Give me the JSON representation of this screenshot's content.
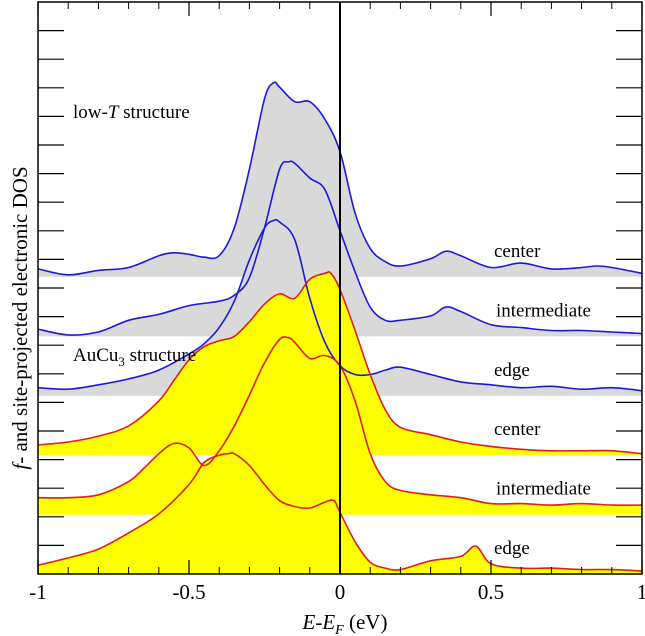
{
  "chart_data": {
    "type": "area",
    "xlabel": {
      "main": "E-E",
      "sub": "F",
      "unit": " (eV)"
    },
    "ylabel": {
      "prefix": "f",
      "rest": "- and site-projected electronic DOS"
    },
    "xlim": [
      -1,
      1
    ],
    "x_ticks": [
      -1,
      -0.5,
      0,
      0.5,
      1
    ],
    "x_tick_labels": [
      "-1",
      "-0.5",
      "0",
      "0.5",
      "1"
    ],
    "y_ticks_count": 20,
    "y_grid": false,
    "fermi_line_x": 0,
    "groups": [
      {
        "name_parts": [
          "low-",
          "T",
          " structure"
        ],
        "fill_color": "#d9d9d9",
        "line_color": "#1a1adb",
        "series": [
          {
            "name": "center",
            "baseline": 9.63,
            "x": [
              -1.0,
              -0.9,
              -0.8,
              -0.7,
              -0.6,
              -0.55,
              -0.5,
              -0.45,
              -0.4,
              -0.35,
              -0.3,
              -0.25,
              -0.22,
              -0.2,
              -0.15,
              -0.1,
              -0.05,
              0.0,
              0.05,
              0.1,
              0.15,
              0.2,
              0.3,
              0.35,
              0.4,
              0.5,
              0.6,
              0.7,
              0.8,
              0.85,
              0.9,
              1.0
            ],
            "y": [
              9.9,
              9.7,
              9.85,
              9.95,
              10.35,
              10.45,
              10.4,
              10.3,
              10.35,
              11.3,
              13.3,
              15.7,
              16.25,
              16.1,
              15.6,
              15.6,
              15.0,
              13.9,
              11.8,
              10.6,
              10.15,
              10.0,
              10.25,
              10.5,
              10.35,
              9.95,
              10.1,
              9.9,
              9.95,
              10.0,
              9.95,
              9.75
            ]
          },
          {
            "name": "intermediate",
            "baseline": 7.6,
            "x": [
              -1.0,
              -0.9,
              -0.8,
              -0.7,
              -0.6,
              -0.5,
              -0.4,
              -0.35,
              -0.3,
              -0.25,
              -0.2,
              -0.17,
              -0.15,
              -0.1,
              -0.05,
              0.0,
              0.05,
              0.1,
              0.15,
              0.2,
              0.3,
              0.35,
              0.4,
              0.5,
              0.6,
              0.7,
              0.8,
              0.9,
              1.0
            ],
            "y": [
              7.85,
              7.65,
              7.75,
              8.15,
              8.35,
              8.65,
              8.8,
              9.0,
              9.6,
              11.3,
              13.3,
              13.55,
              13.5,
              13.0,
              12.6,
              11.2,
              9.8,
              8.6,
              8.15,
              8.15,
              8.3,
              8.6,
              8.45,
              8.0,
              7.9,
              7.8,
              7.8,
              7.75,
              7.7
            ]
          },
          {
            "name": "edge",
            "baseline": 5.57,
            "x": [
              -1.0,
              -0.9,
              -0.8,
              -0.7,
              -0.6,
              -0.5,
              -0.45,
              -0.4,
              -0.35,
              -0.3,
              -0.25,
              -0.22,
              -0.2,
              -0.15,
              -0.1,
              -0.05,
              0.0,
              0.05,
              0.1,
              0.15,
              0.2,
              0.3,
              0.4,
              0.5,
              0.6,
              0.7,
              0.8,
              0.9,
              1.0
            ],
            "y": [
              5.85,
              5.8,
              5.95,
              6.15,
              6.45,
              7.0,
              7.35,
              7.9,
              8.8,
              10.2,
              11.3,
              11.55,
              11.5,
              10.9,
              8.9,
              7.4,
              6.6,
              6.3,
              6.3,
              6.45,
              6.55,
              6.3,
              6.05,
              5.95,
              5.85,
              5.9,
              5.8,
              5.85,
              5.75
            ]
          }
        ]
      },
      {
        "name_parts": [
          "AuCu",
          "3",
          " structure"
        ],
        "fill_color": "#ffff00",
        "line_color": "#e01e1e",
        "series": [
          {
            "name": "center",
            "baseline": 3.55,
            "x": [
              -1.0,
              -0.9,
              -0.8,
              -0.7,
              -0.6,
              -0.55,
              -0.5,
              -0.45,
              -0.4,
              -0.35,
              -0.3,
              -0.25,
              -0.2,
              -0.15,
              -0.1,
              -0.05,
              -0.03,
              0.0,
              0.05,
              0.1,
              0.15,
              0.2,
              0.3,
              0.4,
              0.5,
              0.6,
              0.7,
              0.8,
              0.9,
              1.0
            ],
            "y": [
              3.9,
              4.0,
              4.2,
              4.55,
              5.4,
              6.1,
              6.8,
              7.25,
              7.45,
              7.6,
              8.1,
              8.7,
              9.05,
              8.9,
              9.55,
              9.75,
              9.75,
              9.2,
              7.8,
              6.3,
              5.1,
              4.5,
              4.25,
              4.0,
              3.85,
              3.75,
              3.7,
              3.7,
              3.7,
              3.6
            ]
          },
          {
            "name": "intermediate",
            "baseline": 1.52,
            "x": [
              -1.0,
              -0.9,
              -0.8,
              -0.7,
              -0.65,
              -0.6,
              -0.55,
              -0.5,
              -0.45,
              -0.4,
              -0.35,
              -0.3,
              -0.25,
              -0.2,
              -0.17,
              -0.15,
              -0.1,
              -0.05,
              0.0,
              0.05,
              0.1,
              0.15,
              0.2,
              0.3,
              0.4,
              0.5,
              0.6,
              0.7,
              0.8,
              0.9,
              1.0
            ],
            "y": [
              2.1,
              2.1,
              2.2,
              2.65,
              3.1,
              3.6,
              3.95,
              3.8,
              3.2,
              3.7,
              4.55,
              5.6,
              6.7,
              7.5,
              7.55,
              7.4,
              6.85,
              6.95,
              6.6,
              5.4,
              3.6,
              2.65,
              2.35,
              2.2,
              2.1,
              1.9,
              1.9,
              1.85,
              1.9,
              1.85,
              1.85
            ]
          },
          {
            "name": "edge",
            "baseline": -0.5,
            "x": [
              -1.0,
              -0.9,
              -0.8,
              -0.7,
              -0.6,
              -0.5,
              -0.45,
              -0.4,
              -0.37,
              -0.35,
              -0.3,
              -0.25,
              -0.2,
              -0.15,
              -0.1,
              -0.05,
              -0.02,
              0.0,
              0.05,
              0.1,
              0.15,
              0.2,
              0.3,
              0.4,
              0.45,
              0.5,
              0.6,
              0.7,
              0.8,
              0.9,
              1.0
            ],
            "y": [
              -0.2,
              0.05,
              0.35,
              0.9,
              1.55,
              2.55,
              3.3,
              3.55,
              3.6,
              3.6,
              3.2,
              2.55,
              2.0,
              1.8,
              1.75,
              1.95,
              2.0,
              1.6,
              0.6,
              -0.1,
              -0.3,
              -0.35,
              -0.05,
              0.1,
              0.45,
              -0.15,
              -0.3,
              -0.3,
              -0.35,
              -0.35,
              -0.4
            ]
          }
        ]
      }
    ]
  }
}
